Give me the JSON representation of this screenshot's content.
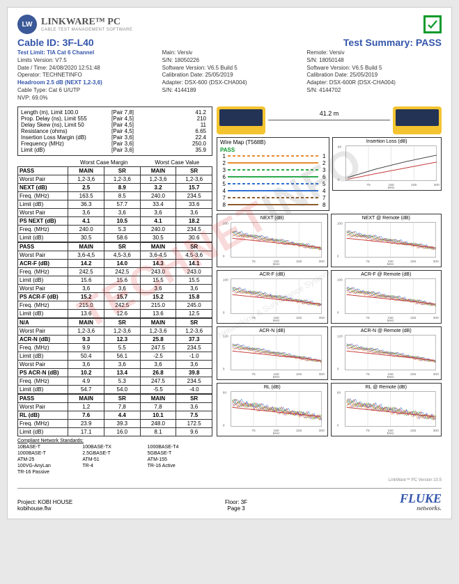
{
  "header": {
    "logo_initials": "LW",
    "logo_title": "LINKWARE™ PC",
    "logo_sub": "CABLE TEST MANAGEMENT SOFTWARE"
  },
  "title": {
    "cable_id_label": "Cable ID:",
    "cable_id": "3F-L40",
    "summary_label": "Test Summary:",
    "summary": "PASS"
  },
  "meta_left": [
    {
      "label": "Test Limit:",
      "val": "TIA Cat 6 Channel",
      "bold": true
    },
    {
      "label": "Limits Version:",
      "val": "V7.5"
    },
    {
      "label": "Date / Time:",
      "val": "24/08/2020  12:51:48"
    },
    {
      "label": "Operator:",
      "val": "TECHNETINFO"
    },
    {
      "label": "Headroom",
      "val": "2.5 dB (NEXT 1,2-3,6)",
      "bold": true
    },
    {
      "label": "Cable Type:",
      "val": "Cat 6 U/UTP"
    },
    {
      "label": "NVP:",
      "val": "69.0%"
    }
  ],
  "meta_main": [
    {
      "label": "Main:",
      "val": "Versiv"
    },
    {
      "label": "S/N:",
      "val": "18050226"
    },
    {
      "label": "Software Version:",
      "val": "V6.5 Build 5"
    },
    {
      "label": "Calibration Date:",
      "val": "25/05/2019"
    },
    {
      "label": "Adapter:",
      "val": "DSX-600 (DSX-CHA004)"
    },
    {
      "label": "S/N:",
      "val": "4144189"
    }
  ],
  "meta_remote": [
    {
      "label": "Remote:",
      "val": "Versiv"
    },
    {
      "label": "S/N:",
      "val": "18050148"
    },
    {
      "label": "Software Version:",
      "val": "V6.5 Build 5"
    },
    {
      "label": "Calibration Date:",
      "val": "25/05/2019"
    },
    {
      "label": "Adapter:",
      "val": "DSX-600R (DSX-CHA004)"
    },
    {
      "label": "S/N:",
      "val": "4144702"
    }
  ],
  "topbox": [
    {
      "label": "Length (m), Limit 100.0",
      "pair": "[Pair 7,8]",
      "val": "41.2"
    },
    {
      "label": "Prop. Delay (ns), Limit 555",
      "pair": "[Pair 4,5]",
      "val": "210"
    },
    {
      "label": "Delay Skew (ns), Limit 50",
      "pair": "[Pair 4,5]",
      "val": "11"
    },
    {
      "label": "Resistance (ohms)",
      "pair": "[Pair 4,5]",
      "val": "6.65"
    },
    {
      "label": "",
      "pair": "",
      "val": ""
    },
    {
      "label": "Insertion Loss Margin (dB)",
      "pair": "[Pair 3,6]",
      "val": "22.4"
    },
    {
      "label": "Frequency (MHz)",
      "pair": "[Pair 3,6]",
      "val": "250.0"
    },
    {
      "label": "Limit (dB)",
      "pair": "[Pair 3,6]",
      "val": "35.9"
    }
  ],
  "table_header": {
    "c1": "",
    "c2a": "Worst Case Margin",
    "c2b": "Worst Case Value"
  },
  "sub_header": [
    "",
    "MAIN",
    "SR",
    "MAIN",
    "SR"
  ],
  "sections": [
    {
      "pass": "PASS",
      "rows": [
        [
          "Worst Pair",
          "1,2-3,6",
          "1,2-3,6",
          "1,2-3,6",
          "1,2-3,6"
        ],
        [
          "NEXT (dB)",
          "2.5",
          "8.9",
          "3.2",
          "15.7"
        ],
        [
          "Freq. (MHz)",
          "163.5",
          "8.5",
          "240.0",
          "234.5"
        ],
        [
          "Limit (dB)",
          "36.3",
          "57.7",
          "33.4",
          "33.6"
        ],
        [
          "Worst Pair",
          "3,6",
          "3,6",
          "3,6",
          "3,6"
        ],
        [
          "PS NEXT (dB)",
          "4.1",
          "10.5",
          "4.1",
          "18.2"
        ],
        [
          "Freq. (MHz)",
          "240.0",
          "5.3",
          "240.0",
          "234.5"
        ],
        [
          "Limit (dB)",
          "30.5",
          "58.6",
          "30.5",
          "30.6"
        ]
      ]
    },
    {
      "pass": "PASS",
      "rows": [
        [
          "Worst Pair",
          "3,6-4,5",
          "4,5-3,6",
          "3,6-4,5",
          "4,5-3,6"
        ],
        [
          "ACR-F (dB)",
          "14.2",
          "14.0",
          "14.3",
          "14.1"
        ],
        [
          "Freq. (MHz)",
          "242.5",
          "242.5",
          "243.0",
          "243.0"
        ],
        [
          "Limit (dB)",
          "15.6",
          "15.6",
          "15.5",
          "15.5"
        ],
        [
          "Worst Pair",
          "3,6",
          "3,6",
          "3,6",
          "3,6"
        ],
        [
          "PS ACR-F (dB)",
          "15.2",
          "15.7",
          "15.2",
          "15.8"
        ],
        [
          "Freq. (MHz)",
          "215.0",
          "242.5",
          "215.0",
          "245.0"
        ],
        [
          "Limit (dB)",
          "13.6",
          "12.6",
          "13.6",
          "12.5"
        ]
      ]
    },
    {
      "pass": "N/A",
      "rows": [
        [
          "Worst Pair",
          "1,2-3,6",
          "1,2-3,6",
          "1,2-3,6",
          "1,2-3,6"
        ],
        [
          "ACR-N (dB)",
          "9.3",
          "12.3",
          "25.8",
          "37.3"
        ],
        [
          "Freq. (MHz)",
          "9.9",
          "5.5",
          "247.5",
          "234.5"
        ],
        [
          "Limit (dB)",
          "50.4",
          "56.1",
          "-2.5",
          "-1.0"
        ],
        [
          "Worst Pair",
          "3,6",
          "3,6",
          "3,6",
          "3,6"
        ],
        [
          "PS ACR-N (dB)",
          "10.2",
          "13.4",
          "26.8",
          "39.8"
        ],
        [
          "Freq. (MHz)",
          "4.9",
          "5.3",
          "247.5",
          "234.5"
        ],
        [
          "Limit (dB)",
          "54.7",
          "54.0",
          "-5.5",
          "-4.0"
        ]
      ]
    },
    {
      "pass": "PASS",
      "rows": [
        [
          "Worst Pair",
          "1,2",
          "7,8",
          "7,8",
          "3,6"
        ],
        [
          "RL (dB)",
          "7.6",
          "4.4",
          "10.1",
          "7.5"
        ],
        [
          "Freq. (MHz)",
          "23.9",
          "39.3",
          "248.0",
          "172.5"
        ],
        [
          "Limit (dB)",
          "17.1",
          "16.0",
          "8.1",
          "9.6"
        ]
      ]
    }
  ],
  "compliants": {
    "title": "Compliant Network Standards:",
    "rows": [
      [
        "10BASE-T",
        "100BASE-TX",
        "1000BASE-T4"
      ],
      [
        "1000BASE-T",
        "2.5GBASE-T",
        "5GBASE-T"
      ],
      [
        "ATM-25",
        "ATM-51",
        "ATM-155"
      ],
      [
        "100VG-AnyLan",
        "TR-4",
        "TR-16 Active"
      ],
      [
        "TR-16 Passive",
        "",
        ""
      ]
    ]
  },
  "device_len": "41.2 m",
  "wiremap": {
    "title": "Wire Map (T568B)",
    "status": "PASS",
    "pairs": [
      {
        "n": 1,
        "c": "#e88b2e"
      },
      {
        "n": 2,
        "c": "#e88b2e"
      },
      {
        "n": 3,
        "c": "#2aa84a"
      },
      {
        "n": 6,
        "c": "#2aa84a"
      },
      {
        "n": 5,
        "c": "#2a6fd4"
      },
      {
        "n": 4,
        "c": "#2a6fd4"
      },
      {
        "n": 7,
        "c": "#8b5a2b"
      },
      {
        "n": 8,
        "c": "#8b5a2b"
      }
    ]
  },
  "charts": [
    {
      "title": "Insertion Loss (dB)",
      "type": "il",
      "xlim": [
        0,
        300
      ],
      "ylim": [
        0,
        60
      ],
      "xticks": [
        75,
        150,
        225,
        300
      ],
      "xlabel": "MHz",
      "series": [
        {
          "color": "#c43a3a",
          "pts": [
            [
              5,
              2
            ],
            [
              100,
              12
            ],
            [
              200,
              22
            ],
            [
              300,
              32
            ]
          ]
        },
        {
          "color": "#333",
          "pts": [
            [
              5,
              5
            ],
            [
              100,
              20
            ],
            [
              200,
              33
            ],
            [
              300,
              44
            ]
          ]
        }
      ]
    },
    {
      "title": "NEXT (dB)",
      "type": "noisy",
      "xlim": [
        0,
        300
      ],
      "ylim": [
        0,
        100
      ],
      "xticks": [
        75,
        150,
        225,
        300
      ],
      "xlabel": "MHz"
    },
    {
      "title": "NEXT @ Remote (dB)",
      "type": "noisy",
      "xlim": [
        0,
        300
      ],
      "ylim": [
        0,
        100
      ],
      "xticks": [
        75,
        150,
        225,
        300
      ],
      "xlabel": "MHz"
    },
    {
      "title": "ACR-F (dB)",
      "type": "noisy",
      "xlim": [
        0,
        300
      ],
      "ylim": [
        0,
        100
      ],
      "xticks": [
        75,
        150,
        225,
        300
      ],
      "xlabel": "MHz"
    },
    {
      "title": "ACR-F @ Remote (dB)",
      "type": "noisy",
      "xlim": [
        0,
        300
      ],
      "ylim": [
        0,
        100
      ],
      "xticks": [
        75,
        150,
        225,
        300
      ],
      "xlabel": "MHz"
    },
    {
      "title": "ACR-N (dB)",
      "type": "noisy",
      "xlim": [
        0,
        300
      ],
      "ylim": [
        0,
        120
      ],
      "xticks": [
        75,
        150,
        225,
        300
      ],
      "xlabel": "MHz"
    },
    {
      "title": "ACR-N @ Remote (dB)",
      "type": "noisy",
      "xlim": [
        0,
        300
      ],
      "ylim": [
        0,
        120
      ],
      "xticks": [
        75,
        150,
        225,
        300
      ],
      "xlabel": "MHz"
    },
    {
      "title": "RL (dB)",
      "type": "noisy",
      "xlim": [
        0,
        300
      ],
      "ylim": [
        0,
        60
      ],
      "xticks": [
        75,
        150,
        225,
        300
      ],
      "xlabel": "MHz"
    },
    {
      "title": "RL @ Remote (dB)",
      "type": "noisy",
      "xlim": [
        0,
        300
      ],
      "ylim": [
        0,
        60
      ],
      "xticks": [
        75,
        150,
        225,
        300
      ],
      "xlabel": "MHz"
    }
  ],
  "chart_colors": [
    "#2a6fd4",
    "#c43a3a",
    "#2aa84a",
    "#b8a02a",
    "#7a3ac4",
    "#e88b2e"
  ],
  "footer": {
    "project_label": "Project:",
    "project": "KOBI HOUSE",
    "file": "kobihouse.flw",
    "floor_label": "Floor:",
    "floor": "3F",
    "page_label": "Page",
    "page": "3",
    "fluke": "FLUKE",
    "fluke_sub": "networks.",
    "version": "LinkWare™ PC Version 10.5"
  },
  "watermark": {
    "a": "TECHNET",
    "b": "INFO",
    "sub": "Networking & Surveillance System"
  }
}
